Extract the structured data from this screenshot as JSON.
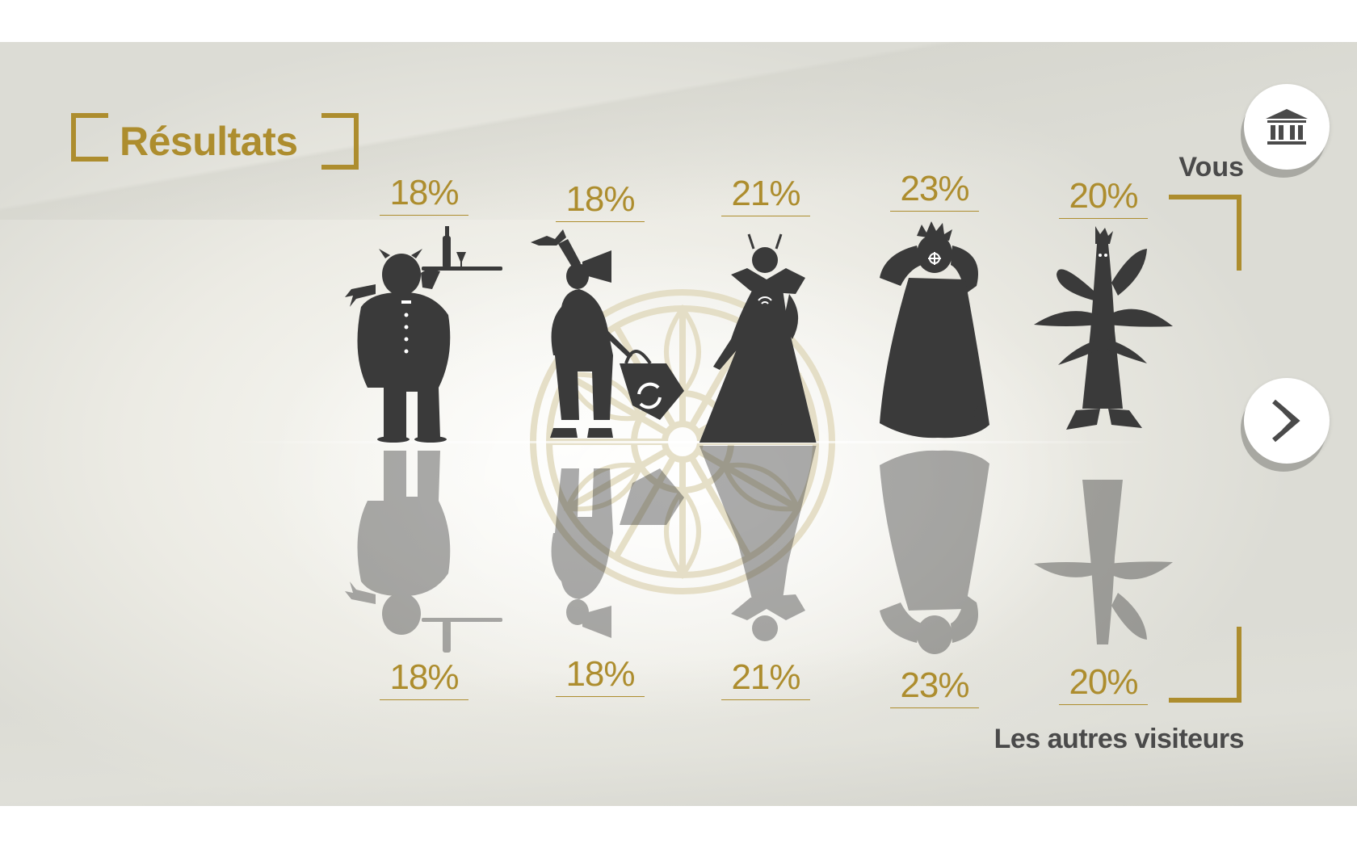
{
  "page": {
    "title": "Résultats"
  },
  "labels": {
    "you": "Vous",
    "others": "Les autres visiteurs"
  },
  "buttons": {
    "museum_icon": "museum-icon",
    "next_icon": "next-chevron-icon"
  },
  "characters": [
    {
      "icon": "waiter-figure",
      "you_pct": "18%",
      "others_pct": "18%"
    },
    {
      "icon": "traveler-figure",
      "you_pct": "18%",
      "others_pct": "18%"
    },
    {
      "icon": "lady-figure",
      "you_pct": "21%",
      "others_pct": "21%"
    },
    {
      "icon": "robed-figure",
      "you_pct": "23%",
      "others_pct": "23%"
    },
    {
      "icon": "plant-figure",
      "you_pct": "20%",
      "others_pct": "20%"
    }
  ],
  "colors": {
    "accent_gold": "#ad8d2e",
    "silhouette": "#3a3a3a",
    "rosette": "#e3dcc2",
    "label_text": "#4a4a4a"
  }
}
